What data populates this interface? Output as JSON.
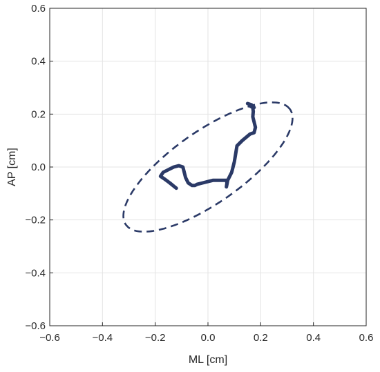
{
  "chart_data": {
    "type": "line",
    "title": "",
    "xlabel": "ML [cm]",
    "ylabel": "AP [cm]",
    "xlim": [
      -0.6,
      0.6
    ],
    "ylim": [
      -0.6,
      0.6
    ],
    "xticks": [
      -0.6,
      -0.4,
      -0.2,
      0,
      0.2,
      0.4,
      0.6
    ],
    "yticks": [
      -0.6,
      -0.4,
      -0.2,
      0,
      0.2,
      0.4,
      0.6
    ],
    "xtick_labels": [
      "−0.6",
      "−0.4",
      "−0.2",
      "0.0",
      "0.2",
      "0.4",
      "0.6"
    ],
    "ytick_labels": [
      "−0.6",
      "−0.4",
      "−0.2",
      "0.0",
      "0.2",
      "0.4",
      "0.6"
    ],
    "grid": true,
    "color": "#2b3a67",
    "series": [
      {
        "style": "solid",
        "x": [
          -0.12,
          -0.145,
          -0.165,
          -0.18,
          -0.17,
          -0.15,
          -0.13,
          -0.11,
          -0.095,
          -0.09,
          -0.085,
          -0.075,
          -0.06,
          -0.05,
          -0.04,
          -0.02,
          0.0,
          0.02,
          0.04,
          0.06,
          0.07,
          0.072,
          0.07,
          0.072,
          0.075,
          0.08,
          0.09,
          0.095,
          0.1,
          0.11,
          0.13,
          0.16,
          0.175,
          0.18,
          0.175,
          0.17,
          0.172,
          0.17,
          0.16,
          0.175,
          0.165,
          0.15
        ],
        "y": [
          -0.08,
          -0.06,
          -0.045,
          -0.035,
          -0.02,
          -0.01,
          0.0,
          0.005,
          0.0,
          -0.02,
          -0.04,
          -0.06,
          -0.07,
          -0.07,
          -0.065,
          -0.06,
          -0.055,
          -0.05,
          -0.05,
          -0.05,
          -0.05,
          -0.06,
          -0.075,
          -0.065,
          -0.05,
          -0.04,
          -0.02,
          0.0,
          0.02,
          0.08,
          0.1,
          0.125,
          0.13,
          0.15,
          0.17,
          0.19,
          0.21,
          0.225,
          0.23,
          0.225,
          0.235,
          0.24
        ]
      },
      {
        "style": "dashed",
        "ellipse": {
          "center": [
            0.0,
            0.0
          ],
          "semi_major": 0.38,
          "semi_minor": 0.135,
          "angle_deg": 35
        }
      }
    ]
  }
}
